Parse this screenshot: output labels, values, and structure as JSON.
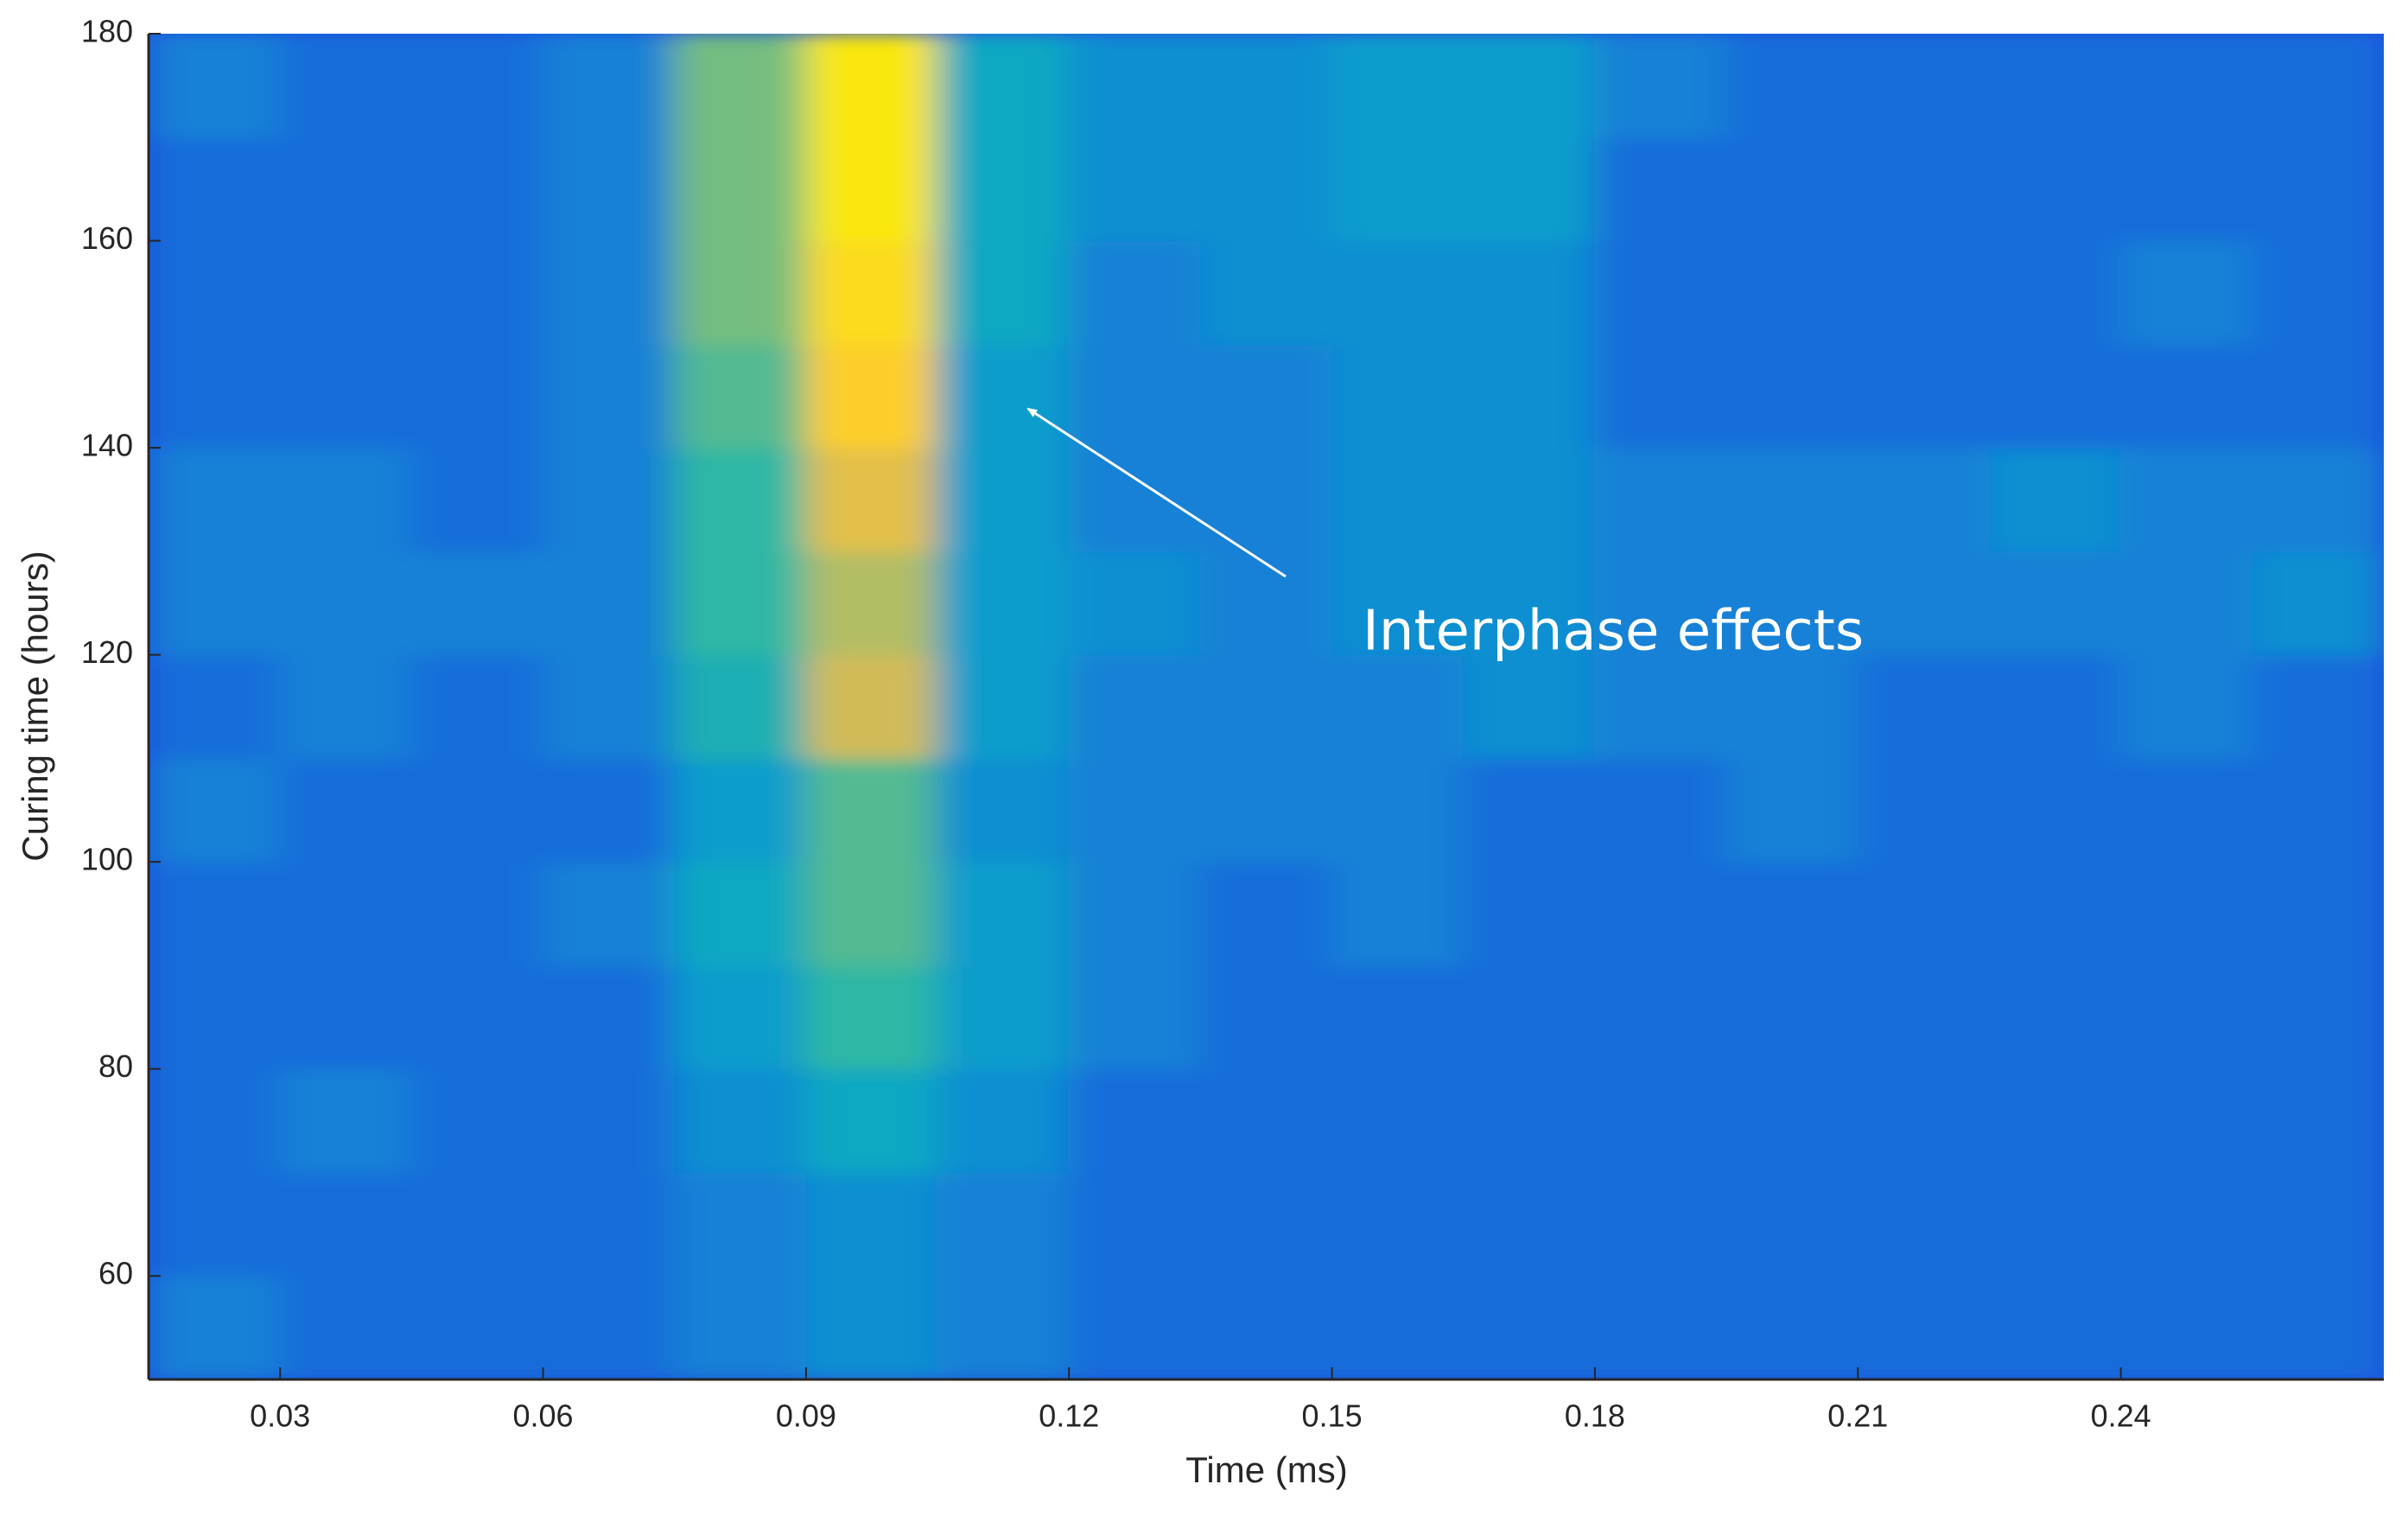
{
  "chart_data": {
    "type": "heatmap",
    "xlabel": "Time (ms)",
    "ylabel": "Curing time (hours)",
    "annotation": "Interphase effects",
    "xlim": [
      0.015,
      0.27
    ],
    "ylim": [
      50,
      180
    ],
    "xticks": [
      0.03,
      0.06,
      0.09,
      0.12,
      0.15,
      0.18,
      0.21,
      0.24
    ],
    "yticks": [
      60,
      80,
      100,
      120,
      140,
      160,
      180
    ],
    "zlim": [
      0,
      1
    ],
    "colormap": [
      "#352a87",
      "#1f4fe0",
      "#1481d6",
      "#06a4ca",
      "#2eb7a4",
      "#87bf77",
      "#d1bb59",
      "#fec832",
      "#f9e70e"
    ],
    "x": [
      0.0225,
      0.0375,
      0.0525,
      0.0675,
      0.0825,
      0.0975,
      0.1125,
      0.1275,
      0.1425,
      0.1575,
      0.1725,
      0.1875,
      0.2025,
      0.2175,
      0.2325,
      0.2475,
      0.2625
    ],
    "y": [
      55,
      65,
      75,
      85,
      95,
      105,
      115,
      125,
      135,
      145,
      155,
      165,
      175
    ],
    "z": [
      [
        0.25,
        0.2,
        0.2,
        0.2,
        0.25,
        0.3,
        0.25,
        0.2,
        0.2,
        0.2,
        0.2,
        0.2,
        0.2,
        0.2,
        0.2,
        0.2,
        0.2
      ],
      [
        0.2,
        0.2,
        0.2,
        0.2,
        0.25,
        0.3,
        0.25,
        0.2,
        0.2,
        0.2,
        0.2,
        0.2,
        0.2,
        0.2,
        0.2,
        0.2,
        0.2
      ],
      [
        0.2,
        0.25,
        0.2,
        0.2,
        0.3,
        0.4,
        0.3,
        0.2,
        0.2,
        0.2,
        0.2,
        0.2,
        0.2,
        0.2,
        0.2,
        0.2,
        0.2
      ],
      [
        0.2,
        0.2,
        0.2,
        0.2,
        0.35,
        0.5,
        0.35,
        0.25,
        0.2,
        0.2,
        0.2,
        0.2,
        0.2,
        0.2,
        0.2,
        0.2,
        0.2
      ],
      [
        0.2,
        0.2,
        0.2,
        0.25,
        0.4,
        0.55,
        0.35,
        0.25,
        0.2,
        0.25,
        0.2,
        0.2,
        0.2,
        0.2,
        0.2,
        0.2,
        0.2
      ],
      [
        0.25,
        0.2,
        0.2,
        0.2,
        0.35,
        0.55,
        0.3,
        0.25,
        0.25,
        0.25,
        0.2,
        0.2,
        0.25,
        0.2,
        0.2,
        0.2,
        0.2
      ],
      [
        0.2,
        0.25,
        0.2,
        0.25,
        0.45,
        0.75,
        0.35,
        0.25,
        0.25,
        0.25,
        0.3,
        0.25,
        0.25,
        0.2,
        0.2,
        0.25,
        0.2
      ],
      [
        0.25,
        0.25,
        0.25,
        0.25,
        0.5,
        0.7,
        0.35,
        0.3,
        0.25,
        0.3,
        0.3,
        0.25,
        0.25,
        0.25,
        0.25,
        0.25,
        0.3
      ],
      [
        0.25,
        0.25,
        0.2,
        0.25,
        0.5,
        0.8,
        0.35,
        0.25,
        0.25,
        0.3,
        0.3,
        0.25,
        0.25,
        0.25,
        0.3,
        0.25,
        0.25
      ],
      [
        0.2,
        0.2,
        0.2,
        0.25,
        0.55,
        0.9,
        0.35,
        0.25,
        0.25,
        0.3,
        0.3,
        0.2,
        0.2,
        0.2,
        0.2,
        0.2,
        0.2
      ],
      [
        0.2,
        0.2,
        0.2,
        0.25,
        0.6,
        0.95,
        0.4,
        0.25,
        0.3,
        0.3,
        0.3,
        0.2,
        0.2,
        0.2,
        0.2,
        0.25,
        0.2
      ],
      [
        0.2,
        0.2,
        0.2,
        0.25,
        0.6,
        1.0,
        0.4,
        0.3,
        0.3,
        0.35,
        0.35,
        0.2,
        0.2,
        0.2,
        0.2,
        0.2,
        0.2
      ],
      [
        0.25,
        0.2,
        0.2,
        0.25,
        0.6,
        1.0,
        0.4,
        0.3,
        0.3,
        0.35,
        0.35,
        0.25,
        0.2,
        0.2,
        0.2,
        0.2,
        0.2
      ]
    ]
  }
}
